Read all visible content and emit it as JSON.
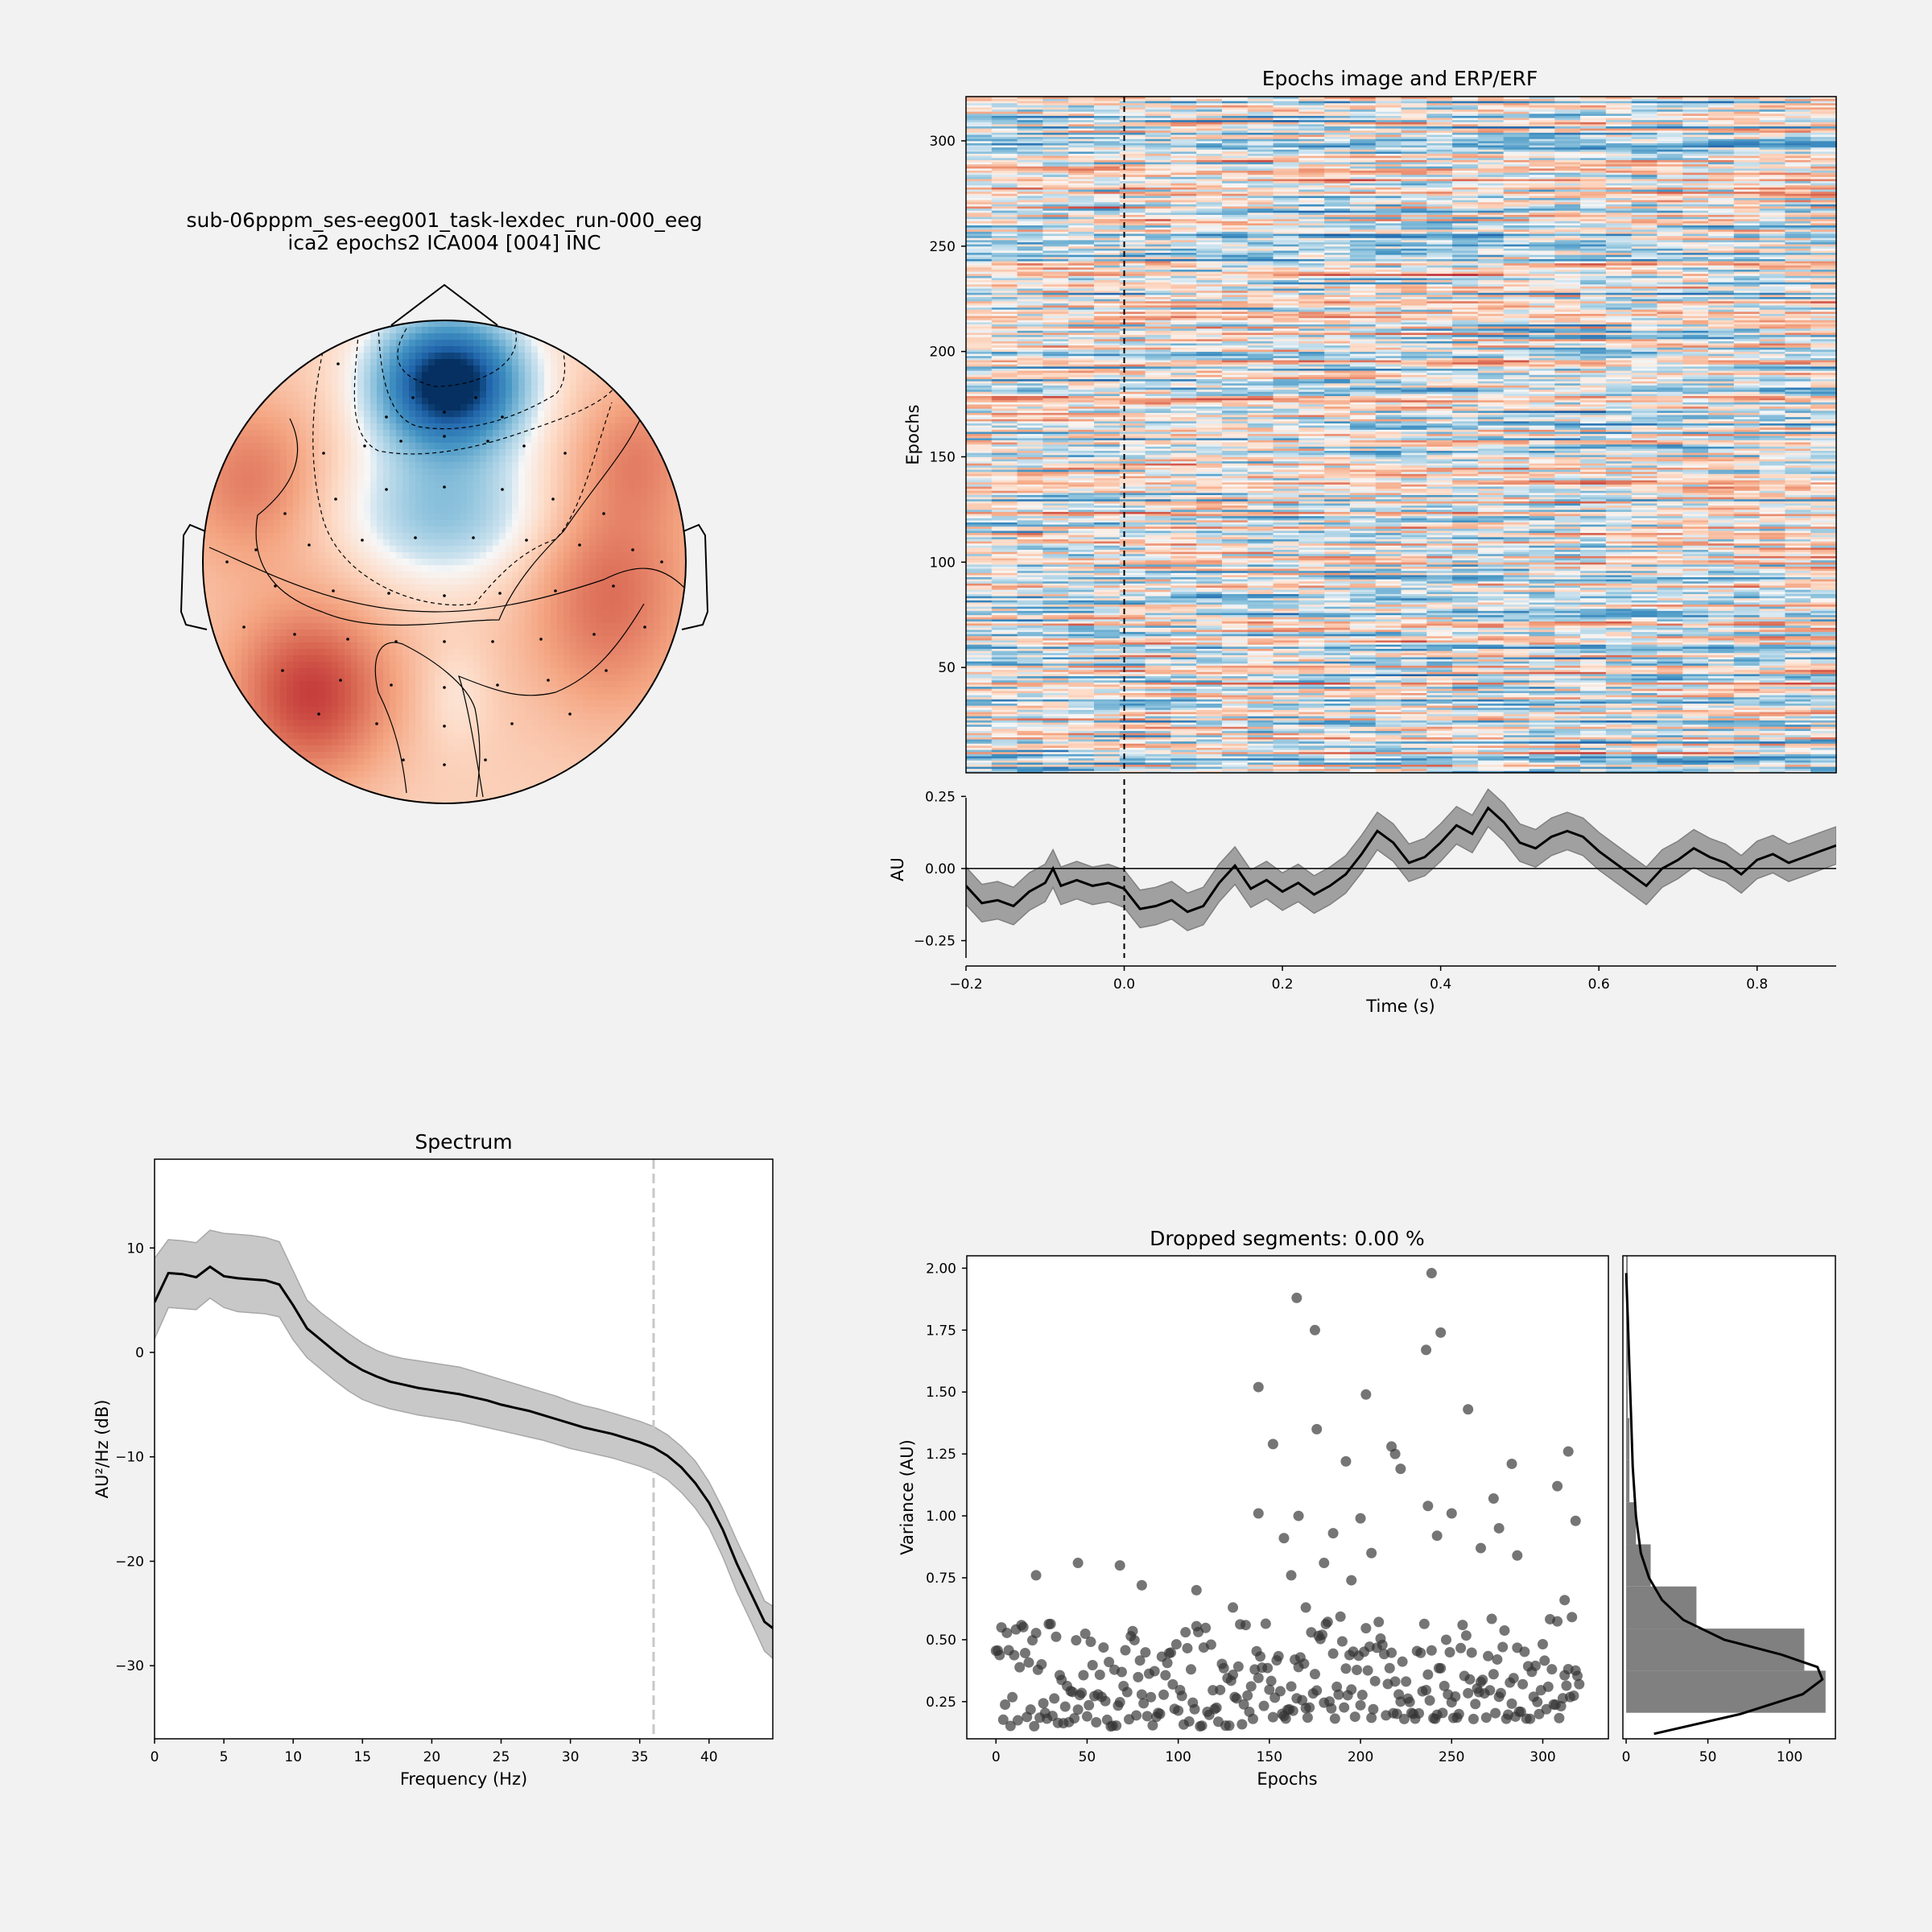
{
  "colors": {
    "background": "#f2f2f2",
    "positive": "#d6604d",
    "negative": "#08306b",
    "line": "#000000",
    "band": "#a0a0a0",
    "scatter": "#333333",
    "histogram": "#808080"
  },
  "chart_data": [
    {
      "id": "topomap",
      "type": "heatmap",
      "title_line1": "sub-06pppm_ses-eeg001_task-lexdec_run-000_eeg",
      "title_line2": "ica2 epochs2 ICA004 [004] INC",
      "colormap": "RdBu_r",
      "sensors": [
        [
          -0.13,
          0.68
        ],
        [
          0.13,
          0.68
        ],
        [
          -0.24,
          0.6
        ],
        [
          0.0,
          0.62
        ],
        [
          0.24,
          0.6
        ],
        [
          -0.5,
          0.45
        ],
        [
          -0.33,
          0.48
        ],
        [
          -0.18,
          0.5
        ],
        [
          0.0,
          0.52
        ],
        [
          0.18,
          0.5
        ],
        [
          0.33,
          0.48
        ],
        [
          0.5,
          0.45
        ],
        [
          -0.66,
          0.2
        ],
        [
          -0.45,
          0.26
        ],
        [
          -0.24,
          0.3
        ],
        [
          0.0,
          0.31
        ],
        [
          0.24,
          0.3
        ],
        [
          0.45,
          0.26
        ],
        [
          0.66,
          0.2
        ],
        [
          -0.78,
          0.05
        ],
        [
          -0.56,
          0.07
        ],
        [
          -0.34,
          0.09
        ],
        [
          -0.12,
          0.1
        ],
        [
          0.12,
          0.1
        ],
        [
          0.34,
          0.09
        ],
        [
          0.56,
          0.07
        ],
        [
          0.78,
          0.05
        ],
        [
          -0.7,
          -0.1
        ],
        [
          -0.46,
          -0.12
        ],
        [
          -0.23,
          -0.13
        ],
        [
          0.0,
          -0.14
        ],
        [
          0.23,
          -0.13
        ],
        [
          0.46,
          -0.12
        ],
        [
          0.7,
          -0.1
        ],
        [
          -0.83,
          -0.27
        ],
        [
          -0.62,
          -0.3
        ],
        [
          -0.4,
          -0.32
        ],
        [
          -0.2,
          -0.33
        ],
        [
          0.0,
          -0.33
        ],
        [
          0.2,
          -0.33
        ],
        [
          0.4,
          -0.32
        ],
        [
          0.62,
          -0.3
        ],
        [
          0.83,
          -0.27
        ],
        [
          -0.67,
          -0.45
        ],
        [
          -0.43,
          -0.49
        ],
        [
          -0.22,
          -0.51
        ],
        [
          0.0,
          -0.52
        ],
        [
          0.22,
          -0.51
        ],
        [
          0.43,
          -0.49
        ],
        [
          0.67,
          -0.45
        ],
        [
          -0.52,
          -0.63
        ],
        [
          -0.28,
          -0.67
        ],
        [
          0.0,
          -0.68
        ],
        [
          0.28,
          -0.67
        ],
        [
          0.52,
          -0.63
        ],
        [
          -0.17,
          -0.82
        ],
        [
          0.0,
          -0.84
        ],
        [
          0.17,
          -0.82
        ],
        [
          -0.44,
          0.82
        ],
        [
          -0.9,
          0.0
        ],
        [
          0.9,
          0.0
        ]
      ]
    },
    {
      "id": "epochs_image",
      "type": "heatmap",
      "title": "Epochs image and ERP/ERF",
      "ylabel": "Epochs",
      "ylim": [
        0,
        321
      ],
      "xlim": [
        -0.2,
        0.9
      ],
      "yticks": [
        50,
        100,
        150,
        200,
        250,
        300
      ],
      "event_time": 0.0,
      "colormap": "RdBu_r"
    },
    {
      "id": "erp",
      "type": "line",
      "xlabel": "Time (s)",
      "ylabel": "AU",
      "xlim": [
        -0.2,
        0.9
      ],
      "ylim": [
        -0.31,
        0.29
      ],
      "xticks": [
        -0.2,
        0.0,
        0.2,
        0.4,
        0.6,
        0.8
      ],
      "yticks": [
        -0.25,
        0.0,
        0.25
      ],
      "x": [
        -0.2,
        -0.18,
        -0.16,
        -0.14,
        -0.12,
        -0.1,
        -0.09,
        -0.08,
        -0.06,
        -0.04,
        -0.02,
        0.0,
        0.02,
        0.04,
        0.06,
        0.08,
        0.1,
        0.12,
        0.14,
        0.16,
        0.18,
        0.2,
        0.22,
        0.24,
        0.26,
        0.28,
        0.3,
        0.32,
        0.34,
        0.36,
        0.38,
        0.4,
        0.42,
        0.44,
        0.46,
        0.48,
        0.5,
        0.52,
        0.54,
        0.56,
        0.58,
        0.6,
        0.62,
        0.64,
        0.66,
        0.68,
        0.7,
        0.72,
        0.74,
        0.76,
        0.78,
        0.8,
        0.82,
        0.84,
        0.86,
        0.88,
        0.9
      ],
      "y": [
        -0.06,
        -0.12,
        -0.11,
        -0.13,
        -0.08,
        -0.05,
        0.0,
        -0.06,
        -0.04,
        -0.06,
        -0.05,
        -0.07,
        -0.14,
        -0.13,
        -0.11,
        -0.15,
        -0.13,
        -0.05,
        0.01,
        -0.07,
        -0.04,
        -0.08,
        -0.05,
        -0.09,
        -0.06,
        -0.02,
        0.05,
        0.13,
        0.09,
        0.02,
        0.04,
        0.09,
        0.15,
        0.12,
        0.21,
        0.16,
        0.09,
        0.07,
        0.11,
        0.13,
        0.11,
        0.06,
        0.02,
        -0.02,
        -0.06,
        0.0,
        0.03,
        0.07,
        0.04,
        0.02,
        -0.02,
        0.03,
        0.05,
        0.02,
        0.04,
        0.06,
        0.08
      ],
      "band_halfwidth": 0.065
    },
    {
      "id": "spectrum",
      "type": "line",
      "title": "Spectrum",
      "xlabel": "Frequency (Hz)",
      "ylabel": "AU²/Hz (dB)",
      "xlim": [
        0,
        44.6
      ],
      "ylim": [
        -37,
        18.5
      ],
      "xticks": [
        0,
        5,
        10,
        15,
        20,
        25,
        30,
        35,
        40
      ],
      "yticks": [
        10,
        0,
        -10,
        -20,
        -30
      ],
      "vline": 36.0,
      "x": [
        0,
        1,
        2,
        3,
        4,
        5,
        6,
        7,
        8,
        9,
        10,
        11,
        12,
        13,
        14,
        15,
        16,
        17,
        18,
        19,
        20,
        21,
        22,
        23,
        24,
        25,
        26,
        27,
        28,
        29,
        30,
        31,
        32,
        33,
        34,
        35,
        36,
        37,
        38,
        39,
        40,
        41,
        42,
        43,
        44,
        44.6
      ],
      "y": [
        4.8,
        7.6,
        7.5,
        7.2,
        8.2,
        7.3,
        7.1,
        7.0,
        6.9,
        6.5,
        4.5,
        2.3,
        1.2,
        0.1,
        -0.9,
        -1.7,
        -2.3,
        -2.8,
        -3.1,
        -3.4,
        -3.6,
        -3.8,
        -4.0,
        -4.3,
        -4.6,
        -5.0,
        -5.3,
        -5.6,
        -6.0,
        -6.4,
        -6.8,
        -7.2,
        -7.5,
        -7.8,
        -8.2,
        -8.6,
        -9.1,
        -9.9,
        -11.0,
        -12.5,
        -14.4,
        -17.0,
        -20.2,
        -23.0,
        -25.8,
        -26.4
      ],
      "band_upper": [
        9.0,
        10.8,
        10.7,
        10.5,
        11.7,
        11.4,
        11.3,
        11.2,
        11.0,
        10.6,
        7.8,
        5.0,
        3.8,
        2.8,
        1.8,
        0.9,
        0.2,
        -0.3,
        -0.6,
        -0.8,
        -1.0,
        -1.2,
        -1.4,
        -1.8,
        -2.2,
        -2.6,
        -3.0,
        -3.4,
        -3.8,
        -4.2,
        -4.7,
        -5.1,
        -5.4,
        -5.8,
        -6.2,
        -6.6,
        -7.1,
        -7.9,
        -9.0,
        -10.4,
        -12.4,
        -15.0,
        -18.0,
        -20.8,
        -23.8,
        -24.3
      ],
      "band_lower": [
        1.3,
        4.3,
        4.2,
        4.1,
        5.2,
        4.3,
        3.9,
        3.8,
        3.7,
        3.4,
        1.2,
        -0.5,
        -1.6,
        -2.7,
        -3.7,
        -4.5,
        -5.0,
        -5.4,
        -5.7,
        -6.0,
        -6.2,
        -6.4,
        -6.6,
        -6.9,
        -7.2,
        -7.5,
        -7.8,
        -8.1,
        -8.4,
        -8.8,
        -9.2,
        -9.5,
        -9.8,
        -10.1,
        -10.5,
        -10.9,
        -11.4,
        -12.2,
        -13.4,
        -14.9,
        -16.8,
        -19.6,
        -22.9,
        -25.7,
        -28.6,
        -29.3
      ]
    },
    {
      "id": "variance",
      "type": "scatter",
      "title": "Dropped segments: 0.00 %",
      "xlabel": "Epochs",
      "ylabel": "Variance (AU)",
      "xlim": [
        -16,
        336
      ],
      "ylim": [
        0.1,
        2.05
      ],
      "xticks": [
        0,
        50,
        100,
        150,
        200,
        250,
        300
      ],
      "yticks": [
        0.25,
        0.5,
        0.75,
        1.0,
        1.25,
        1.5,
        1.75,
        2.0
      ],
      "n_epochs": 321,
      "outliers": [
        [
          22,
          0.76
        ],
        [
          45,
          0.81
        ],
        [
          68,
          0.8
        ],
        [
          80,
          0.72
        ],
        [
          110,
          0.7
        ],
        [
          144,
          1.52
        ],
        [
          144,
          1.01
        ],
        [
          152,
          1.29
        ],
        [
          158,
          0.91
        ],
        [
          162,
          0.76
        ],
        [
          165,
          1.88
        ],
        [
          166,
          1.0
        ],
        [
          170,
          0.63
        ],
        [
          175,
          1.75
        ],
        [
          176,
          1.35
        ],
        [
          180,
          0.81
        ],
        [
          185,
          0.93
        ],
        [
          192,
          1.22
        ],
        [
          200,
          0.99
        ],
        [
          203,
          1.49
        ],
        [
          206,
          0.85
        ],
        [
          217,
          1.28
        ],
        [
          219,
          1.25
        ],
        [
          222,
          1.19
        ],
        [
          236,
          1.67
        ],
        [
          237,
          1.04
        ],
        [
          239,
          1.98
        ],
        [
          242,
          0.92
        ],
        [
          244,
          1.74
        ],
        [
          250,
          1.01
        ],
        [
          259,
          1.43
        ],
        [
          266,
          0.87
        ],
        [
          273,
          1.07
        ],
        [
          283,
          1.21
        ],
        [
          286,
          0.84
        ],
        [
          308,
          1.12
        ],
        [
          314,
          1.26
        ],
        [
          318,
          0.98
        ],
        [
          312,
          0.66
        ],
        [
          276,
          0.95
        ],
        [
          195,
          0.74
        ],
        [
          130,
          0.63
        ]
      ],
      "bulk_median": 0.32
    },
    {
      "id": "variance_hist",
      "type": "bar",
      "orientation": "horizontal",
      "xlim": [
        -2,
        128
      ],
      "xticks": [
        0,
        50,
        100
      ],
      "bin_edges": [
        0.205,
        0.375,
        0.545,
        0.715,
        0.885,
        1.055,
        1.225,
        1.395,
        1.565,
        1.735,
        1.905,
        2.075
      ],
      "counts": [
        122,
        109,
        43,
        15,
        6,
        2,
        2,
        1,
        1,
        1,
        1
      ],
      "kde": [
        [
          0.12,
          17
        ],
        [
          0.2,
          70
        ],
        [
          0.28,
          108
        ],
        [
          0.34,
          120
        ],
        [
          0.39,
          117
        ],
        [
          0.44,
          95
        ],
        [
          0.5,
          60
        ],
        [
          0.58,
          35
        ],
        [
          0.66,
          22
        ],
        [
          0.75,
          14
        ],
        [
          0.85,
          9
        ],
        [
          1.0,
          6
        ],
        [
          1.2,
          4
        ],
        [
          1.4,
          3
        ],
        [
          1.6,
          2
        ],
        [
          1.8,
          1
        ],
        [
          1.98,
          0
        ]
      ]
    }
  ]
}
